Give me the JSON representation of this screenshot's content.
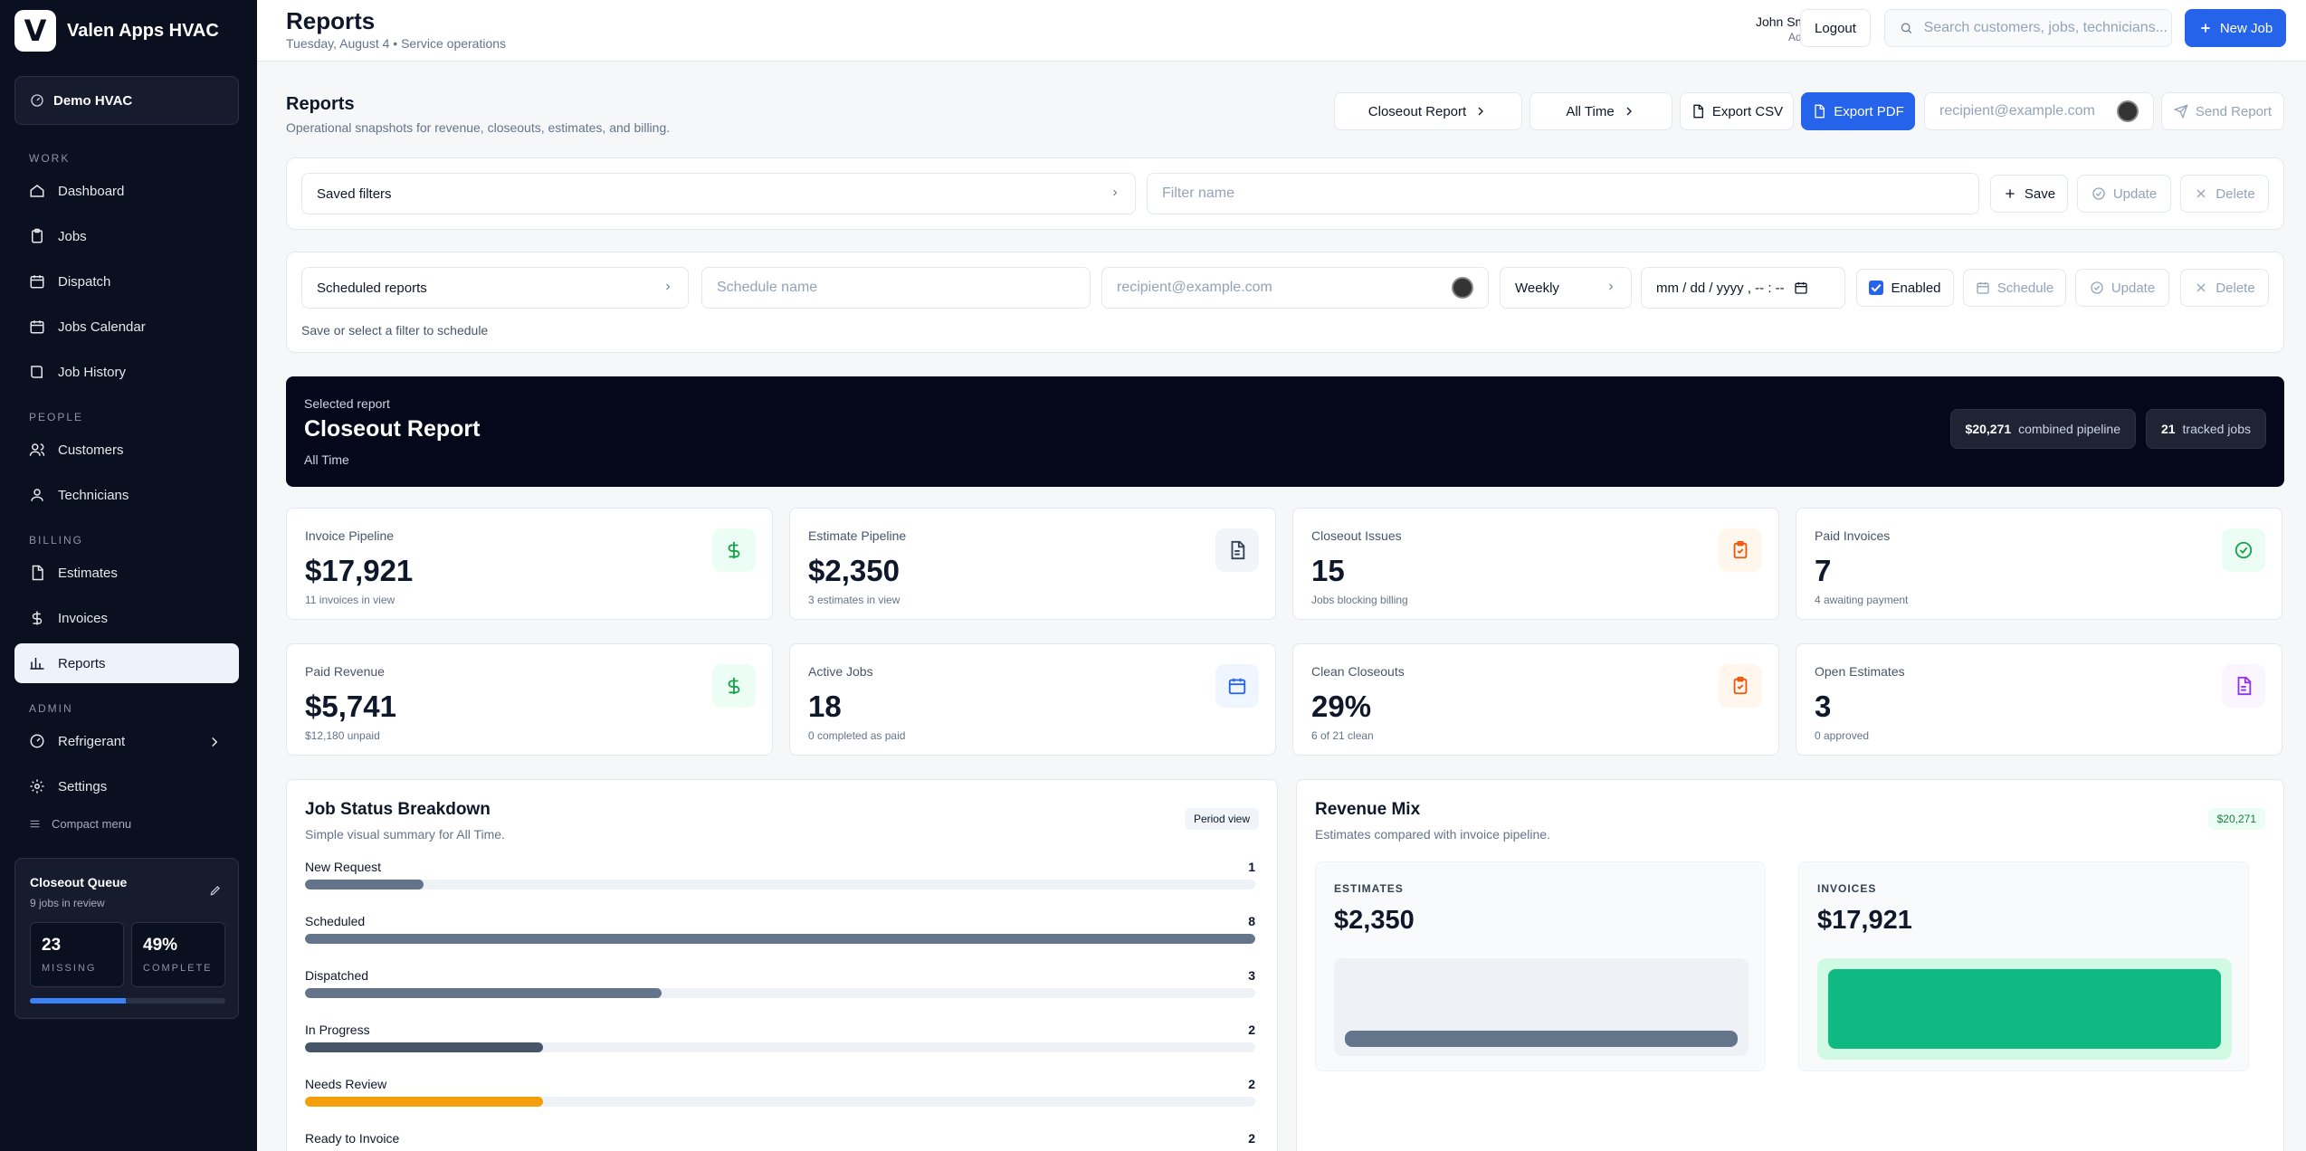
{
  "brand": {
    "logo": "V",
    "name": "Valen Apps HVAC"
  },
  "org": {
    "name": "Demo HVAC"
  },
  "nav": {
    "work_label": "WORK",
    "people_label": "PEOPLE",
    "billing_label": "BILLING",
    "admin_label": "ADMIN",
    "work": [
      {
        "label": "Dashboard",
        "icon": "home-icon"
      },
      {
        "label": "Jobs",
        "icon": "clipboard-icon"
      },
      {
        "label": "Dispatch",
        "icon": "calendar-icon"
      },
      {
        "label": "Jobs Calendar",
        "icon": "calendar-icon"
      },
      {
        "label": "Job History",
        "icon": "book-icon"
      }
    ],
    "people": [
      {
        "label": "Customers",
        "icon": "users-icon"
      },
      {
        "label": "Technicians",
        "icon": "user-icon"
      }
    ],
    "billing": [
      {
        "label": "Estimates",
        "icon": "file-icon"
      },
      {
        "label": "Invoices",
        "icon": "dollar-icon"
      },
      {
        "label": "Reports",
        "icon": "bar-chart-icon"
      }
    ],
    "admin": [
      {
        "label": "Refrigerant",
        "icon": "gauge-icon"
      },
      {
        "label": "Settings",
        "icon": "gear-icon"
      }
    ],
    "compact": "Compact menu"
  },
  "queue": {
    "title": "Closeout Queue",
    "subtitle": "9 jobs in review",
    "missing_value": "23",
    "missing_label": "MISSING",
    "complete_value": "49%",
    "complete_label": "COMPLETE",
    "progress": 0.49
  },
  "header": {
    "title": "Reports",
    "subtitle": "Tuesday, August 4 • Service operations",
    "user_name": "John Smith",
    "user_role": "Admin",
    "logout": "Logout",
    "search_placeholder": "Search customers, jobs, technicians...",
    "new_job": "New Job"
  },
  "reports": {
    "title": "Reports",
    "subtitle": "Operational snapshots for revenue, closeouts, estimates, and billing.",
    "report_select": "Closeout Report",
    "range_select": "All Time",
    "export_csv": "Export CSV",
    "export_pdf": "Export PDF",
    "recipient_placeholder": "recipient@example.com",
    "send": "Send Report"
  },
  "saved": {
    "select": "Saved filters",
    "name_placeholder": "Filter name",
    "save": "Save",
    "update": "Update",
    "delete": "Delete"
  },
  "scheduled": {
    "select": "Scheduled reports",
    "name_placeholder": "Schedule name",
    "recipient_placeholder": "recipient@example.com",
    "frequency": "Weekly",
    "datetime": "mm / dd / yyyy ,  -- : --",
    "enabled": "Enabled",
    "schedule": "Schedule",
    "update": "Update",
    "delete": "Delete",
    "hint": "Save or select a filter to schedule"
  },
  "hero": {
    "pre": "Selected report",
    "title": "Closeout Report",
    "sub": "All Time",
    "pipeline_value": "$20,271",
    "pipeline_label": "combined pipeline",
    "jobs_value": "21",
    "jobs_label": "tracked jobs"
  },
  "kpis": [
    {
      "label": "Invoice Pipeline",
      "value": "$17,921",
      "note": "11 invoices in view",
      "icon": "dollar-icon",
      "color": "#16a34a",
      "bg": "#ecfdf5"
    },
    {
      "label": "Estimate Pipeline",
      "value": "$2,350",
      "note": "3 estimates in view",
      "icon": "file-icon",
      "color": "#334155",
      "bg": "#f1f5f9"
    },
    {
      "label": "Closeout Issues",
      "value": "15",
      "note": "Jobs blocking billing",
      "icon": "clipboard-check-icon",
      "color": "#ea580c",
      "bg": "#fff7ed"
    },
    {
      "label": "Paid Invoices",
      "value": "7",
      "note": "4 awaiting payment",
      "icon": "check-circle-icon",
      "color": "#16a34a",
      "bg": "#ecfdf5"
    },
    {
      "label": "Paid Revenue",
      "value": "$5,741",
      "note": "$12,180 unpaid",
      "icon": "dollar-icon",
      "color": "#16a34a",
      "bg": "#ecfdf5"
    },
    {
      "label": "Active Jobs",
      "value": "18",
      "note": "0 completed as paid",
      "icon": "calendar-icon",
      "color": "#2563eb",
      "bg": "#eff6ff"
    },
    {
      "label": "Clean Closeouts",
      "value": "29%",
      "note": "6 of 21 clean",
      "icon": "clipboard-check-icon",
      "color": "#ea580c",
      "bg": "#fff7ed"
    },
    {
      "label": "Open Estimates",
      "value": "3",
      "note": "0 approved",
      "icon": "file-text-icon",
      "color": "#9333ea",
      "bg": "#faf5ff"
    }
  ],
  "status": {
    "title": "Job Status Breakdown",
    "subtitle": "Simple visual summary for All Time.",
    "tag": "Period view",
    "max": 8,
    "rows": [
      {
        "name": "New Request",
        "count": 1,
        "color": "#64748b"
      },
      {
        "name": "Scheduled",
        "count": 8,
        "color": "#64748b"
      },
      {
        "name": "Dispatched",
        "count": 3,
        "color": "#64748b"
      },
      {
        "name": "In Progress",
        "count": 2,
        "color": "#475569"
      },
      {
        "name": "Needs Review",
        "count": 2,
        "color": "#f59e0b"
      },
      {
        "name": "Ready to Invoice",
        "count": 2,
        "color": "#64748b"
      }
    ]
  },
  "mix": {
    "title": "Revenue Mix",
    "subtitle": "Estimates compared with invoice pipeline.",
    "total": "$20,271",
    "estimates_label": "ESTIMATES",
    "estimates_value": "$2,350",
    "invoices_label": "INVOICES",
    "invoices_value": "$17,921"
  }
}
